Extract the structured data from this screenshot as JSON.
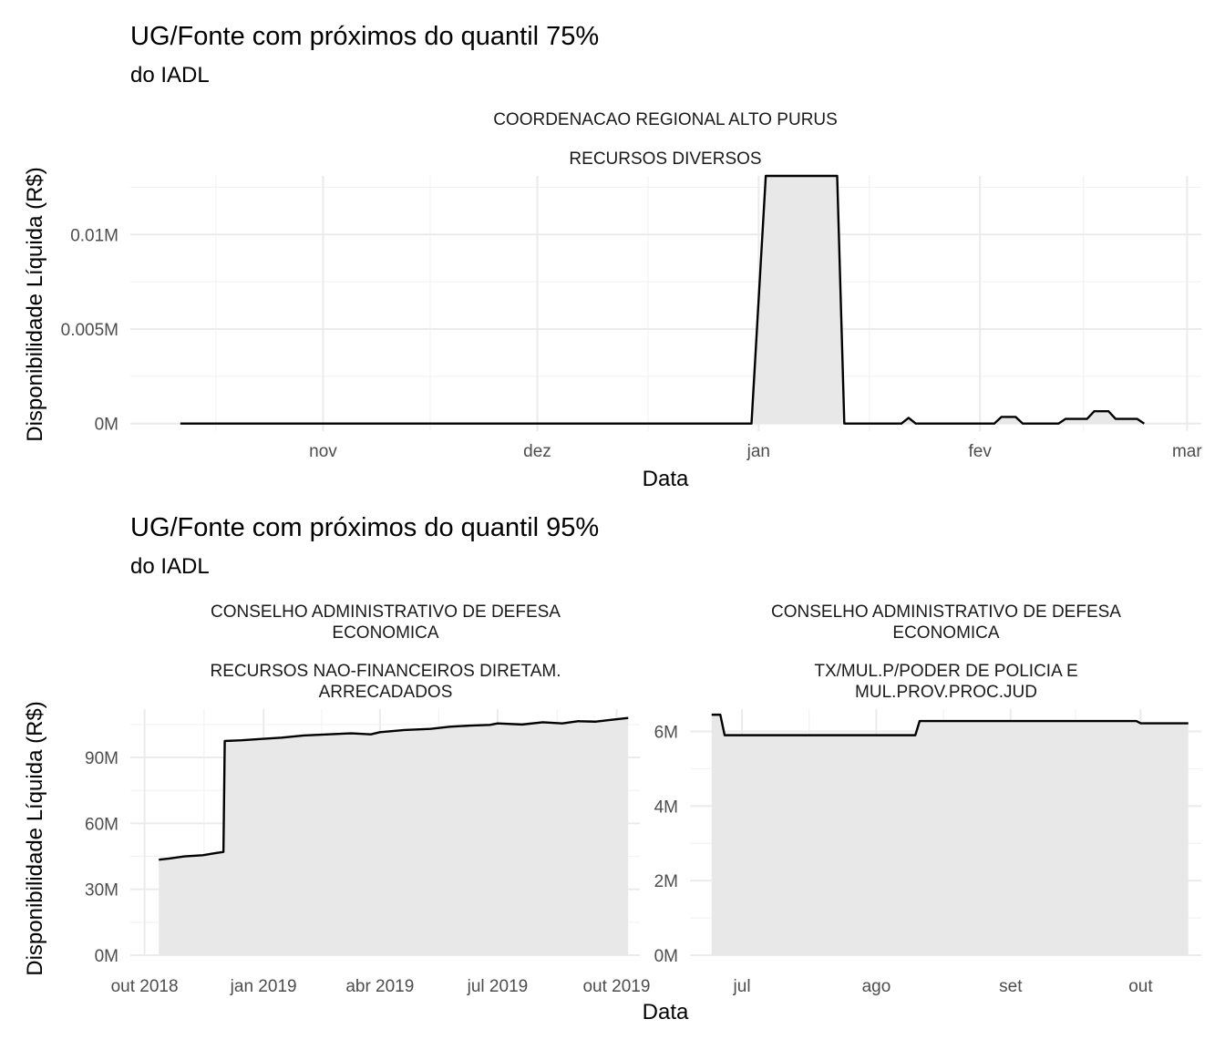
{
  "chart_data": [
    {
      "type": "area",
      "title": "UG/Fonte com próximos do quantil 75%",
      "subtitle": "do IADL",
      "facet_label_1": "COORDENACAO REGIONAL ALTO PURUS",
      "facet_label_2": "RECURSOS DIVERSOS",
      "xlabel": "Data",
      "ylabel": "Disponibilidade Líquida (R$)",
      "x_ticks": [
        "nov",
        "dez",
        "jan",
        "fev",
        "mar"
      ],
      "x_tick_dates": [
        "2019-11-01",
        "2019-12-01",
        "2020-01-01",
        "2020-02-01",
        "2020-03-01"
      ],
      "xlim": [
        "2019-10-05",
        "2020-03-03"
      ],
      "y_ticks": [
        "0M",
        "0.005M",
        "0.01M"
      ],
      "y_tick_values": [
        0,
        0.005,
        0.01
      ],
      "ylim": [
        -0.0004,
        0.0131
      ],
      "grid": true,
      "series": [
        {
          "points": [
            [
              "2019-10-12",
              0
            ],
            [
              "2019-12-31",
              0
            ],
            [
              "2020-01-02",
              0.0131
            ],
            [
              "2020-01-12",
              0.0131
            ],
            [
              "2020-01-13",
              0
            ],
            [
              "2020-01-21",
              0
            ],
            [
              "2020-01-22",
              0.0003
            ],
            [
              "2020-01-23",
              0
            ],
            [
              "2020-02-03",
              0
            ],
            [
              "2020-02-04",
              0.00035
            ],
            [
              "2020-02-06",
              0.00035
            ],
            [
              "2020-02-07",
              0
            ],
            [
              "2020-02-12",
              0
            ],
            [
              "2020-02-13",
              0.00025
            ],
            [
              "2020-02-16",
              0.00025
            ],
            [
              "2020-02-17",
              0.00065
            ],
            [
              "2020-02-19",
              0.00065
            ],
            [
              "2020-02-20",
              0.00025
            ],
            [
              "2020-02-23",
              0.00025
            ],
            [
              "2020-02-24",
              0
            ]
          ]
        }
      ]
    },
    {
      "type": "area",
      "title": "UG/Fonte com próximos do quantil 95%",
      "subtitle": "do IADL",
      "facet_label_1": "CONSELHO ADMINISTRATIVO DE DEFESA|ECONOMICA",
      "facet_label_2": "RECURSOS NAO-FINANCEIROS DIRETAM.|ARRECADADOS",
      "xlabel": "Data",
      "ylabel": "Disponibilidade Líquida (R$)",
      "x_ticks": [
        "out 2018",
        "jan 2019",
        "abr 2019",
        "jul 2019",
        "out 2019"
      ],
      "x_tick_dates": [
        "2018-10-01",
        "2019-01-01",
        "2019-04-01",
        "2019-07-01",
        "2019-10-01"
      ],
      "xlim": [
        "2018-09-20",
        "2019-10-19"
      ],
      "y_ticks": [
        "0M",
        "30M",
        "60M",
        "90M"
      ],
      "y_tick_values": [
        0,
        30,
        60,
        90
      ],
      "ylim": [
        0,
        112
      ],
      "grid": true,
      "series": [
        {
          "points": [
            [
              "2018-10-12",
              43.5
            ],
            [
              "2018-10-20",
              44
            ],
            [
              "2018-11-01",
              45
            ],
            [
              "2018-11-15",
              45.5
            ],
            [
              "2018-11-25",
              46.5
            ],
            [
              "2018-12-01",
              47
            ],
            [
              "2018-12-02",
              97.5
            ],
            [
              "2018-12-15",
              97.8
            ],
            [
              "2019-01-01",
              98.5
            ],
            [
              "2019-01-15",
              99
            ],
            [
              "2019-02-01",
              100
            ],
            [
              "2019-02-20",
              100.5
            ],
            [
              "2019-03-10",
              101
            ],
            [
              "2019-03-25",
              100.5
            ],
            [
              "2019-04-01",
              101.5
            ],
            [
              "2019-04-20",
              102.5
            ],
            [
              "2019-05-10",
              103
            ],
            [
              "2019-05-25",
              104
            ],
            [
              "2019-06-10",
              104.5
            ],
            [
              "2019-06-25",
              104.8
            ],
            [
              "2019-07-01",
              105.5
            ],
            [
              "2019-07-20",
              105
            ],
            [
              "2019-08-05",
              106
            ],
            [
              "2019-08-20",
              105.5
            ],
            [
              "2019-09-01",
              106.5
            ],
            [
              "2019-09-15",
              106.3
            ],
            [
              "2019-09-25",
              107
            ],
            [
              "2019-10-10",
              108
            ]
          ]
        }
      ]
    },
    {
      "type": "area",
      "facet_label_1": "CONSELHO ADMINISTRATIVO DE DEFESA|ECONOMICA",
      "facet_label_2": "TX/MUL.P/PODER DE POLICIA E|MUL.PROV.PROC.JUD",
      "xlabel": "Data",
      "x_ticks": [
        "jul",
        "ago",
        "set",
        "out"
      ],
      "x_tick_dates": [
        "2019-07-01",
        "2019-08-01",
        "2019-09-01",
        "2019-10-01"
      ],
      "xlim": [
        "2019-06-19",
        "2019-10-15"
      ],
      "y_ticks": [
        "0M",
        "2M",
        "4M",
        "6M"
      ],
      "y_tick_values": [
        0,
        2,
        4,
        6
      ],
      "ylim": [
        0,
        6.6
      ],
      "grid": true,
      "series": [
        {
          "points": [
            [
              "2019-06-24",
              6.45
            ],
            [
              "2019-06-26",
              6.45
            ],
            [
              "2019-06-27",
              5.9
            ],
            [
              "2019-08-10",
              5.9
            ],
            [
              "2019-08-11",
              6.28
            ],
            [
              "2019-09-30",
              6.28
            ],
            [
              "2019-10-01",
              6.22
            ],
            [
              "2019-10-12",
              6.22
            ]
          ]
        }
      ]
    }
  ]
}
